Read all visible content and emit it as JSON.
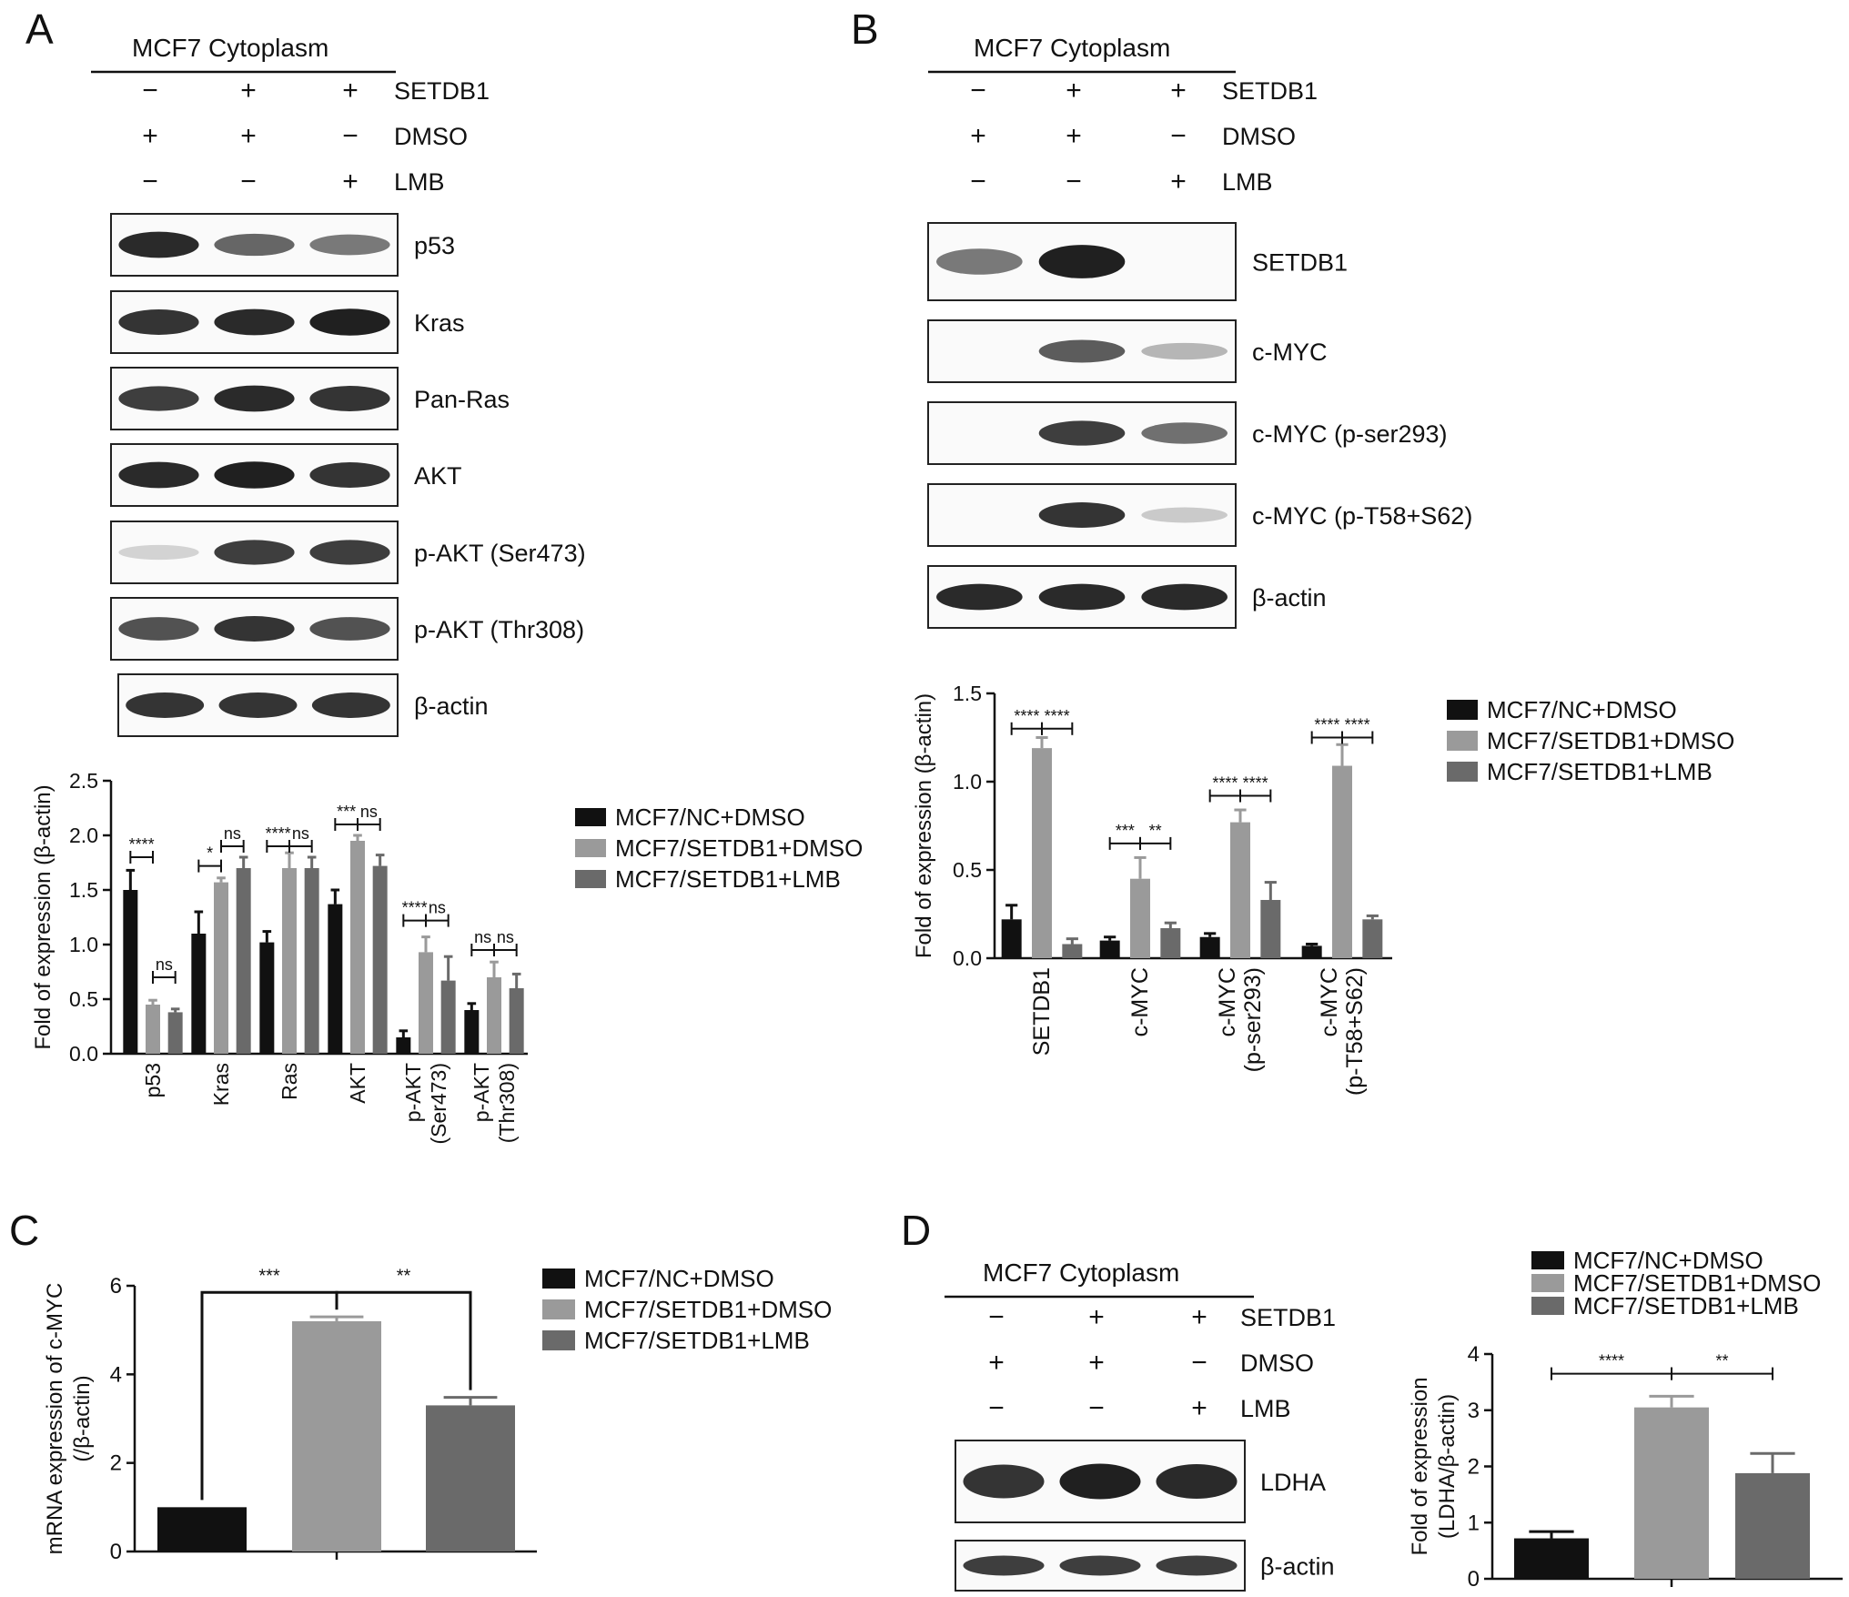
{
  "colors": {
    "nc": "#111111",
    "setdb1_dmso": "#9a9a9a",
    "setdb1_lmb": "#6a6a6a"
  },
  "legend": [
    "MCF7/NC+DMSO",
    "MCF7/SETDB1+DMSO",
    "MCF7/SETDB1+LMB"
  ],
  "panels": {
    "A": {
      "letter": "A",
      "header": "MCF7 Cytoplasm",
      "conditions": [
        {
          "label": "SETDB1",
          "signs": [
            "−",
            "+",
            "+"
          ]
        },
        {
          "label": "DMSO",
          "signs": [
            "+",
            "+",
            "−"
          ]
        },
        {
          "label": "LMB",
          "signs": [
            "−",
            "−",
            "+"
          ]
        }
      ],
      "blots": [
        {
          "label": "p53",
          "bands": [
            0.95,
            0.65,
            0.55
          ]
        },
        {
          "label": "Kras",
          "bands": [
            0.9,
            0.95,
            1.0
          ]
        },
        {
          "label": "Pan-Ras",
          "bands": [
            0.85,
            0.95,
            0.9
          ]
        },
        {
          "label": "AKT",
          "bands": [
            0.95,
            1.0,
            0.9
          ]
        },
        {
          "label": "p-AKT (Ser473)",
          "bands": [
            0.1,
            0.85,
            0.85
          ]
        },
        {
          "label": "p-AKT (Thr308)",
          "bands": [
            0.75,
            0.9,
            0.75
          ]
        },
        {
          "label": "β-actin",
          "bands": [
            0.9,
            0.9,
            0.9
          ]
        }
      ]
    },
    "B": {
      "letter": "B",
      "header": "MCF7 Cytoplasm",
      "conditions": [
        {
          "label": "SETDB1",
          "signs": [
            "−",
            "+",
            "+"
          ]
        },
        {
          "label": "DMSO",
          "signs": [
            "+",
            "+",
            "−"
          ]
        },
        {
          "label": "LMB",
          "signs": [
            "−",
            "−",
            "+"
          ]
        }
      ],
      "blots": [
        {
          "label": "SETDB1",
          "bands": [
            0.55,
            1.0,
            0.0
          ]
        },
        {
          "label": "c-MYC",
          "bands": [
            0.0,
            0.7,
            0.25
          ]
        },
        {
          "label": "c-MYC (p-ser293)",
          "bands": [
            0.0,
            0.85,
            0.6
          ]
        },
        {
          "label": "c-MYC (p-T58+S62)",
          "bands": [
            0.0,
            0.9,
            0.15
          ]
        },
        {
          "label": "β-actin",
          "bands": [
            0.95,
            0.95,
            0.95
          ]
        }
      ]
    },
    "C": {
      "letter": "C"
    },
    "D": {
      "letter": "D",
      "header": "MCF7 Cytoplasm",
      "conditions": [
        {
          "label": "SETDB1",
          "signs": [
            "−",
            "+",
            "+"
          ]
        },
        {
          "label": "DMSO",
          "signs": [
            "+",
            "+",
            "−"
          ]
        },
        {
          "label": "LMB",
          "signs": [
            "−",
            "−",
            "+"
          ]
        }
      ],
      "blots": [
        {
          "label": "LDHA",
          "bands": [
            0.9,
            1.0,
            0.95
          ]
        },
        {
          "label": "β-actin",
          "bands": [
            0.85,
            0.85,
            0.85
          ]
        }
      ]
    }
  },
  "chart_data": [
    {
      "panel": "A",
      "type": "bar",
      "categories": [
        "p53",
        "Kras",
        "Ras",
        "AKT",
        "p-AKT (Ser473)",
        "p-AKT (Thr308)"
      ],
      "ylabel": "Fold of expression (β-actin)",
      "ylim": [
        0,
        2.5
      ],
      "yticks": [
        "0.0",
        "0.5",
        "1.0",
        "1.5",
        "2.0",
        "2.5"
      ],
      "series": [
        {
          "name": "MCF7/NC+DMSO",
          "values": [
            1.5,
            1.1,
            1.02,
            1.37,
            0.15,
            0.4
          ],
          "errors": [
            0.18,
            0.2,
            0.1,
            0.13,
            0.06,
            0.06
          ]
        },
        {
          "name": "MCF7/SETDB1+DMSO",
          "values": [
            0.45,
            1.57,
            1.7,
            1.95,
            0.93,
            0.7
          ],
          "errors": [
            0.04,
            0.04,
            0.14,
            0.05,
            0.14,
            0.14
          ]
        },
        {
          "name": "MCF7/SETDB1+LMB",
          "values": [
            0.38,
            1.7,
            1.7,
            1.72,
            0.67,
            0.6
          ],
          "errors": [
            0.03,
            0.1,
            0.1,
            0.1,
            0.22,
            0.13
          ]
        }
      ],
      "significance": [
        {
          "category": 0,
          "pair": [
            0,
            1
          ],
          "label": "****",
          "y": 1.8
        },
        {
          "category": 0,
          "pair": [
            1,
            2
          ],
          "label": "ns",
          "y": 0.7
        },
        {
          "category": 1,
          "pair": [
            0,
            1
          ],
          "label": "*",
          "y": 1.72
        },
        {
          "category": 1,
          "pair": [
            1,
            2
          ],
          "label": "ns",
          "y": 1.9
        },
        {
          "category": 2,
          "pair": [
            0,
            1
          ],
          "label": "****",
          "y": 1.9
        },
        {
          "category": 2,
          "pair": [
            1,
            2
          ],
          "label": "ns",
          "y": 1.9
        },
        {
          "category": 3,
          "pair": [
            0,
            1
          ],
          "label": "***",
          "y": 2.1
        },
        {
          "category": 3,
          "pair": [
            1,
            2
          ],
          "label": "ns",
          "y": 2.1
        },
        {
          "category": 4,
          "pair": [
            0,
            1
          ],
          "label": "****",
          "y": 1.22
        },
        {
          "category": 4,
          "pair": [
            1,
            2
          ],
          "label": "ns",
          "y": 1.22
        },
        {
          "category": 5,
          "pair": [
            0,
            1
          ],
          "label": "ns",
          "y": 0.95
        },
        {
          "category": 5,
          "pair": [
            1,
            2
          ],
          "label": "ns",
          "y": 0.95
        }
      ]
    },
    {
      "panel": "B",
      "type": "bar",
      "categories": [
        "SETDB1",
        "c-MYC",
        "c-MYC (p-ser293)",
        "c-MYC (p-T58+S62)"
      ],
      "ylabel": "Fold of expression (β-actin)",
      "ylim": [
        0,
        1.5
      ],
      "yticks": [
        "0.0",
        "0.5",
        "1.0",
        "1.5"
      ],
      "series": [
        {
          "name": "MCF7/NC+DMSO",
          "values": [
            0.22,
            0.1,
            0.12,
            0.07
          ],
          "errors": [
            0.08,
            0.02,
            0.02,
            0.01
          ]
        },
        {
          "name": "MCF7/SETDB1+DMSO",
          "values": [
            1.19,
            0.45,
            0.77,
            1.09
          ],
          "errors": [
            0.06,
            0.12,
            0.07,
            0.12
          ]
        },
        {
          "name": "MCF7/SETDB1+LMB",
          "values": [
            0.08,
            0.17,
            0.33,
            0.22
          ],
          "errors": [
            0.03,
            0.03,
            0.1,
            0.02
          ]
        }
      ],
      "significance": [
        {
          "category": 0,
          "pair": [
            0,
            1
          ],
          "label": "****",
          "y": 1.3
        },
        {
          "category": 0,
          "pair": [
            1,
            2
          ],
          "label": "****",
          "y": 1.3
        },
        {
          "category": 1,
          "pair": [
            0,
            1
          ],
          "label": "***",
          "y": 0.65
        },
        {
          "category": 1,
          "pair": [
            1,
            2
          ],
          "label": "**",
          "y": 0.65
        },
        {
          "category": 2,
          "pair": [
            0,
            1
          ],
          "label": "****",
          "y": 0.92
        },
        {
          "category": 2,
          "pair": [
            1,
            2
          ],
          "label": "****",
          "y": 0.92
        },
        {
          "category": 3,
          "pair": [
            0,
            1
          ],
          "label": "****",
          "y": 1.25
        },
        {
          "category": 3,
          "pair": [
            1,
            2
          ],
          "label": "****",
          "y": 1.25
        }
      ]
    },
    {
      "panel": "C",
      "type": "bar",
      "categories": [
        "MCF7/NC+DMSO",
        "MCF7/SETDB1+DMSO",
        "MCF7/SETDB1+LMB"
      ],
      "values": [
        1.0,
        5.2,
        3.3
      ],
      "errors": [
        0.0,
        0.1,
        0.18
      ],
      "ylabel": "mRNA expression of c-MYC (/β-actin)",
      "ylim": [
        0,
        6
      ],
      "yticks": [
        "0",
        "2",
        "4",
        "6"
      ],
      "significance": [
        {
          "pair": [
            0,
            1
          ],
          "label": "***",
          "y": 5.9
        },
        {
          "pair": [
            1,
            2
          ],
          "label": "**",
          "y": 5.9
        }
      ]
    },
    {
      "panel": "D",
      "type": "bar",
      "categories": [
        "MCF7/NC+DMSO",
        "MCF7/SETDB1+DMSO",
        "MCF7/SETDB1+LMB"
      ],
      "values": [
        0.72,
        3.05,
        1.88
      ],
      "errors": [
        0.12,
        0.2,
        0.35
      ],
      "ylabel": "Fold of expression (LDHA/β-actin)",
      "ylim": [
        0,
        4
      ],
      "yticks": [
        "0",
        "1",
        "2",
        "3",
        "4"
      ],
      "significance": [
        {
          "pair": [
            0,
            1
          ],
          "label": "****",
          "y": 3.65
        },
        {
          "pair": [
            1,
            2
          ],
          "label": "**",
          "y": 3.65
        }
      ]
    }
  ]
}
